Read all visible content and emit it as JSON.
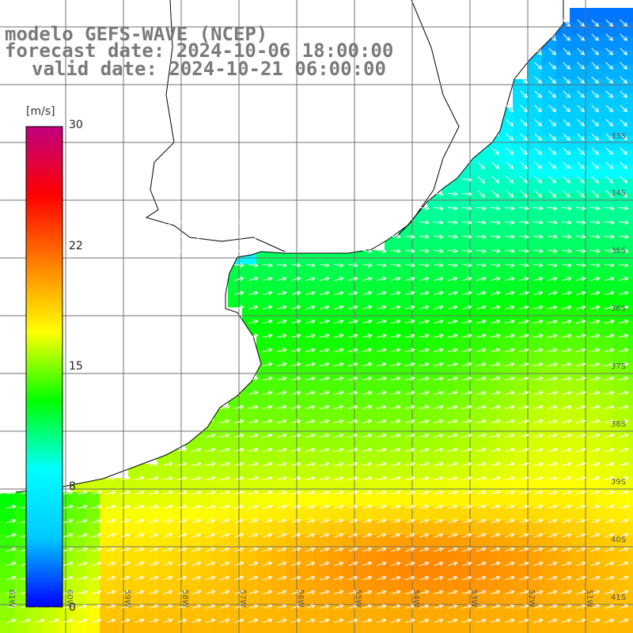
{
  "header": {
    "line1": "modelo GEFS-WAVE (NCEP)",
    "line2": "forecast date: 2024-10-06 18:00:00",
    "line3": "valid date: 2024-10-21 06:00:00"
  },
  "colorbar": {
    "unit": "[m/s]",
    "min": 0,
    "max": 30,
    "ticks": [
      "30",
      "22",
      "15",
      "8",
      "0"
    ],
    "stops": [
      "#0000ff",
      "#00c8ff",
      "#00ffff",
      "#00ff00",
      "#ffff00",
      "#ff8000",
      "#ff0000",
      "#c00080"
    ]
  },
  "map": {
    "lat_labels": [
      "33S",
      "34S",
      "35S",
      "36S",
      "37S",
      "38S",
      "39S",
      "40S",
      "41S"
    ],
    "lon_labels": [
      "61W",
      "60W",
      "59W",
      "58W",
      "57W",
      "56W",
      "55W",
      "54W",
      "53W",
      "52W",
      "51W"
    ],
    "land_color": "#ffffff",
    "arrow_color": "#ffffff",
    "grid_color": "#707070"
  }
}
